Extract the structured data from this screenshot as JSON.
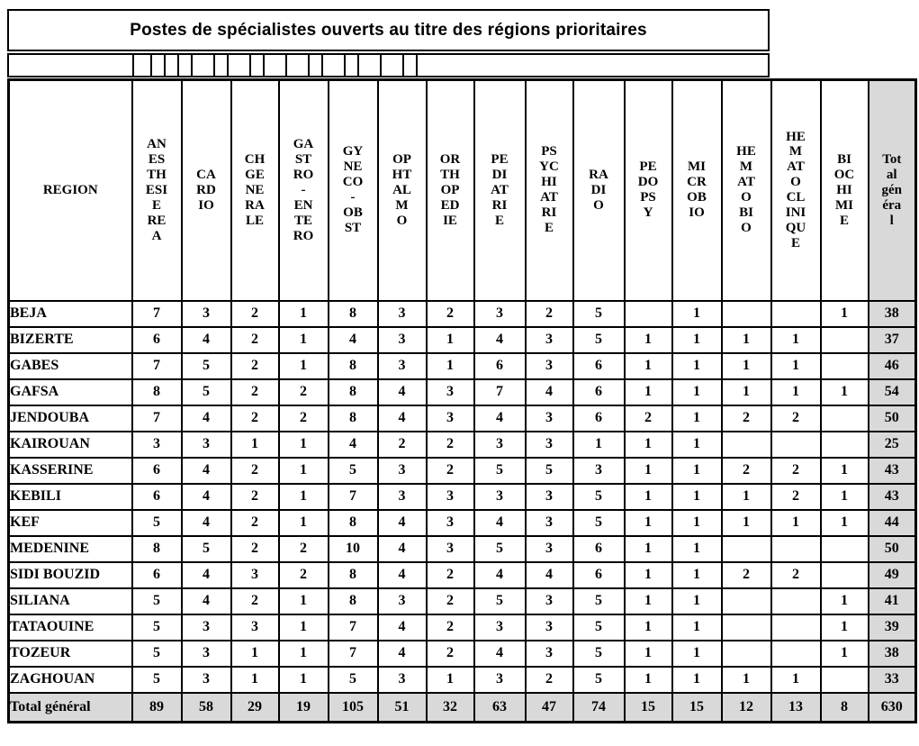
{
  "title": "Postes de spécialistes ouverts au titre des régions prioritaires",
  "colors": {
    "total_background": "#d9d9d9",
    "border": "#000000",
    "page_background": "#ffffff"
  },
  "table": {
    "region_header": "REGION",
    "columns": [
      {
        "label": "ANESTHESIE REA",
        "display": "AN\nES\nTH\nESI\nE\nRE\nA"
      },
      {
        "label": "CARDIO",
        "display": "CA\nRD\nIO"
      },
      {
        "label": "CH GENERALE",
        "display": "CH\nGE\nNE\nRA\nLE"
      },
      {
        "label": "GASTRO-ENTERO",
        "display": "GA\nST\nRO\n-\nEN\nTE\nRO"
      },
      {
        "label": "GYNECO-OBST",
        "display": "GY\nNE\nCO\n-\nOB\nST"
      },
      {
        "label": "OPHTALMO",
        "display": "OP\nHT\nAL\nM\nO"
      },
      {
        "label": "ORTHOPEDIE",
        "display": "OR\nTH\nOP\nED\nIE"
      },
      {
        "label": "PEDIATRIE",
        "display": "PE\nDI\nAT\nRI\nE"
      },
      {
        "label": "PSYCHIATRIE",
        "display": "PS\nYC\nHI\nAT\nRI\nE"
      },
      {
        "label": "RADIO",
        "display": "RA\nDI\nO"
      },
      {
        "label": "PEDOPSY",
        "display": "PE\nDO\nPS\nY"
      },
      {
        "label": "MICROBIO",
        "display": "MI\nCR\nOB\nIO"
      },
      {
        "label": "HEMATOBIO",
        "display": "HE\nM\nAT\nO\nBI\nO"
      },
      {
        "label": "HEMATOCLINIQUE",
        "display": "HE\nM\nAT\nO\nCL\nINI\nQU\nE"
      },
      {
        "label": "BIOCHIMIE",
        "display": "BI\nOC\nHI\nMI\nE"
      },
      {
        "label": "Total général",
        "display": "Tot\nal\ngén\néra\nl"
      }
    ],
    "rows": [
      {
        "region": "BEJA",
        "values": [
          "7",
          "3",
          "2",
          "1",
          "8",
          "3",
          "2",
          "3",
          "2",
          "5",
          "",
          "1",
          "",
          "",
          "1",
          "38"
        ]
      },
      {
        "region": "BIZERTE",
        "values": [
          "6",
          "4",
          "2",
          "1",
          "4",
          "3",
          "1",
          "4",
          "3",
          "5",
          "1",
          "1",
          "1",
          "1",
          "",
          "37"
        ]
      },
      {
        "region": "GABES",
        "values": [
          "7",
          "5",
          "2",
          "1",
          "8",
          "3",
          "1",
          "6",
          "3",
          "6",
          "1",
          "1",
          "1",
          "1",
          "",
          "46"
        ]
      },
      {
        "region": "GAFSA",
        "values": [
          "8",
          "5",
          "2",
          "2",
          "8",
          "4",
          "3",
          "7",
          "4",
          "6",
          "1",
          "1",
          "1",
          "1",
          "1",
          "54"
        ]
      },
      {
        "region": "JENDOUBA",
        "values": [
          "7",
          "4",
          "2",
          "2",
          "8",
          "4",
          "3",
          "4",
          "3",
          "6",
          "2",
          "1",
          "2",
          "2",
          "",
          "50"
        ]
      },
      {
        "region": "KAIROUAN",
        "values": [
          "3",
          "3",
          "1",
          "1",
          "4",
          "2",
          "2",
          "3",
          "3",
          "1",
          "1",
          "1",
          "",
          "",
          "",
          "25"
        ]
      },
      {
        "region": "KASSERINE",
        "values": [
          "6",
          "4",
          "2",
          "1",
          "5",
          "3",
          "2",
          "5",
          "5",
          "3",
          "1",
          "1",
          "2",
          "2",
          "1",
          "43"
        ]
      },
      {
        "region": "KEBILI",
        "values": [
          "6",
          "4",
          "2",
          "1",
          "7",
          "3",
          "3",
          "3",
          "3",
          "5",
          "1",
          "1",
          "1",
          "2",
          "1",
          "43"
        ]
      },
      {
        "region": "KEF",
        "values": [
          "5",
          "4",
          "2",
          "1",
          "8",
          "4",
          "3",
          "4",
          "3",
          "5",
          "1",
          "1",
          "1",
          "1",
          "1",
          "44"
        ]
      },
      {
        "region": "MEDENINE",
        "values": [
          "8",
          "5",
          "2",
          "2",
          "10",
          "4",
          "3",
          "5",
          "3",
          "6",
          "1",
          "1",
          "",
          "",
          "",
          "50"
        ]
      },
      {
        "region": "SIDI BOUZID",
        "values": [
          "6",
          "4",
          "3",
          "2",
          "8",
          "4",
          "2",
          "4",
          "4",
          "6",
          "1",
          "1",
          "2",
          "2",
          "",
          "49"
        ]
      },
      {
        "region": "SILIANA",
        "values": [
          "5",
          "4",
          "2",
          "1",
          "8",
          "3",
          "2",
          "5",
          "3",
          "5",
          "1",
          "1",
          "",
          "",
          "1",
          "41"
        ]
      },
      {
        "region": "TATAOUINE",
        "values": [
          "5",
          "3",
          "3",
          "1",
          "7",
          "4",
          "2",
          "3",
          "3",
          "5",
          "1",
          "1",
          "",
          "",
          "1",
          "39"
        ]
      },
      {
        "region": "TOZEUR",
        "values": [
          "5",
          "3",
          "1",
          "1",
          "7",
          "4",
          "2",
          "4",
          "3",
          "5",
          "1",
          "1",
          "",
          "",
          "1",
          "38"
        ]
      },
      {
        "region": "ZAGHOUAN",
        "values": [
          "5",
          "3",
          "1",
          "1",
          "5",
          "3",
          "1",
          "3",
          "2",
          "5",
          "1",
          "1",
          "1",
          "1",
          "",
          "33"
        ]
      }
    ],
    "total_row": {
      "region": "Total général",
      "values": [
        "89",
        "58",
        "29",
        "19",
        "105",
        "51",
        "32",
        "63",
        "47",
        "74",
        "15",
        "15",
        "12",
        "13",
        "8",
        "630"
      ]
    }
  }
}
